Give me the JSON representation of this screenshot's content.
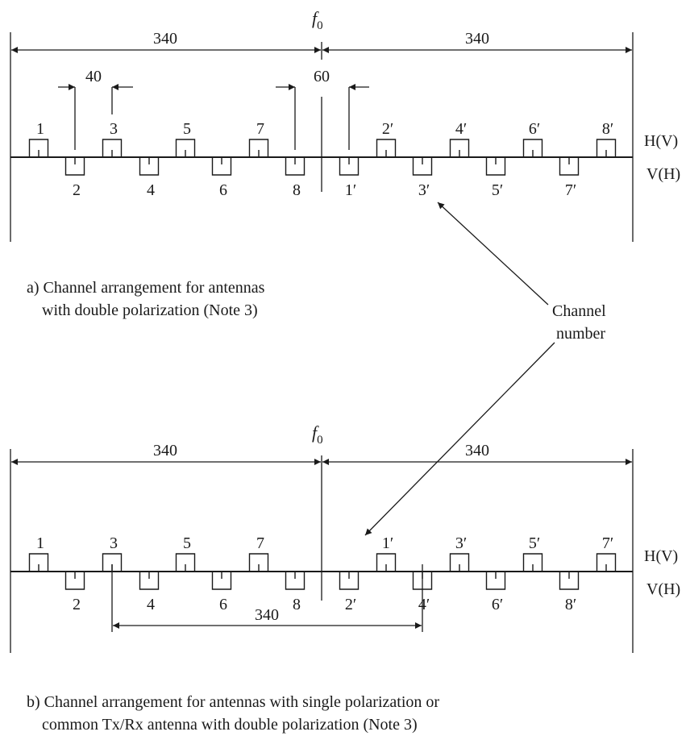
{
  "diagram_a": {
    "f0": "f",
    "f0_sub": "0",
    "span_left": "340",
    "span_right": "340",
    "spacing_adjacent": "40",
    "spacing_center": "60",
    "label_upper": "H(V)",
    "label_lower": "V(H)",
    "upper_channels": [
      "1",
      "3",
      "5",
      "7",
      "2′",
      "4′",
      "6′",
      "8′"
    ],
    "lower_channels": [
      "2",
      "4",
      "6",
      "8",
      "1′",
      "3′",
      "5′",
      "7′"
    ],
    "caption_line1": "a)  Channel arrangement for antennas",
    "caption_line2": "with double polarization (Note 3)"
  },
  "callout": {
    "line1": "Channel",
    "line2": "number"
  },
  "diagram_b": {
    "f0": "f",
    "f0_sub": "0",
    "span_left": "340",
    "span_right": "340",
    "duplex_spacing": "340",
    "label_upper": "H(V)",
    "label_lower": "V(H)",
    "upper_channels": [
      "1",
      "3",
      "5",
      "7",
      "1′",
      "3′",
      "5′",
      "7′"
    ],
    "lower_channels": [
      "2",
      "4",
      "6",
      "8",
      "2′",
      "4′",
      "6′",
      "8′"
    ],
    "caption_line1": "b)  Channel arrangement for antennas with single polarization or",
    "caption_line2": "common Tx/Rx antenna with double polarization (Note 3)"
  }
}
